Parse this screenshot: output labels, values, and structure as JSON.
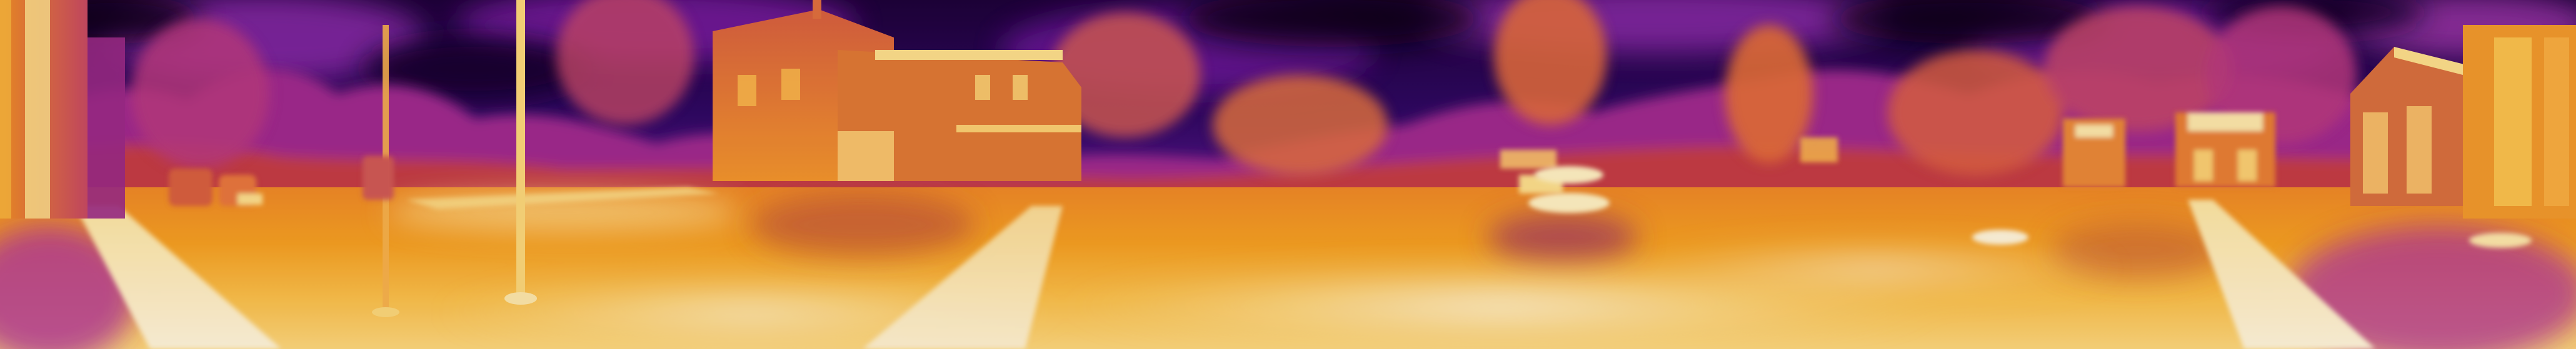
{
  "image": {
    "kind": "thermal-panorama",
    "palette": [
      "#1a0030",
      "#3a0a6e",
      "#7a1fa8",
      "#b0329a",
      "#d8503e",
      "#ee7a22",
      "#f7a81e",
      "#fde08a",
      "#fffbe8"
    ]
  }
}
